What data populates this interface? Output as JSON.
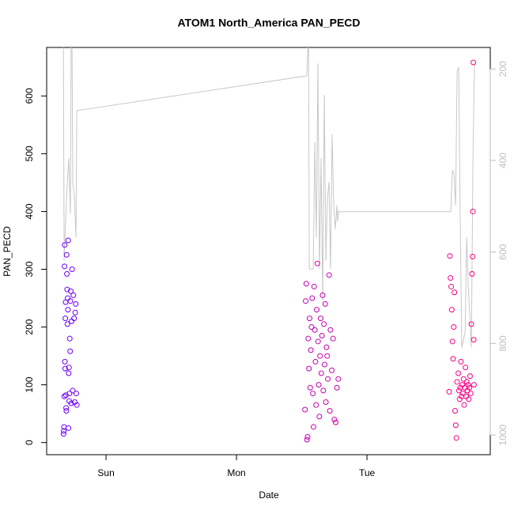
{
  "chart_data": {
    "type": "scatter",
    "title": "ATOM1 North_America PAN_PECD",
    "x_label": "Date",
    "y_label": "PAN_PECD",
    "xlim": [
      0.545,
      3.945
    ],
    "ylim": [
      -21,
      684
    ],
    "y2lim": [
      1043,
      153
    ],
    "xticks": [
      {
        "value": 1,
        "label": "Sun"
      },
      {
        "value": 2,
        "label": "Mon"
      },
      {
        "value": 3,
        "label": "Tue"
      }
    ],
    "yticks": [
      0,
      100,
      200,
      300,
      400,
      500,
      600
    ],
    "y2ticks": [
      200,
      400,
      600,
      800,
      1000
    ],
    "color_range": [
      "#6a00ff",
      "#ff0080"
    ],
    "y2_color": "#bebebe",
    "x": [
      0.675,
      0.676,
      0.678,
      0.68,
      0.682,
      0.683,
      0.685,
      0.687,
      0.688,
      0.69,
      0.692,
      0.694,
      0.696,
      0.698,
      0.7,
      0.702,
      0.704,
      0.706,
      0.708,
      0.71,
      0.712,
      0.714,
      0.716,
      0.718,
      0.72,
      0.722,
      0.725,
      0.727,
      0.73,
      0.733,
      0.736,
      0.74,
      0.745,
      0.75,
      0.755,
      0.76,
      0.764,
      0.768,
      0.772,
      0.776,
      2.525,
      2.53,
      2.535,
      2.54,
      2.545,
      2.55,
      2.555,
      2.56,
      2.565,
      2.57,
      2.575,
      2.58,
      2.585,
      2.59,
      2.595,
      2.6,
      2.605,
      2.61,
      2.615,
      2.62,
      2.625,
      2.63,
      2.635,
      2.64,
      2.645,
      2.65,
      2.655,
      2.66,
      2.665,
      2.67,
      2.675,
      2.68,
      2.685,
      2.69,
      2.695,
      2.7,
      2.71,
      2.715,
      2.72,
      2.73,
      2.74,
      2.75,
      2.76,
      2.77,
      2.78,
      3.63,
      3.635,
      3.64,
      3.645,
      3.65,
      3.655,
      3.66,
      3.665,
      3.67,
      3.675,
      3.68,
      3.685,
      3.69,
      3.7,
      3.705,
      3.71,
      3.715,
      3.72,
      3.725,
      3.73,
      3.735,
      3.74,
      3.745,
      3.75,
      3.755,
      3.76,
      3.765,
      3.77,
      3.775,
      3.78,
      3.785,
      3.79,
      3.795,
      3.8,
      3.805,
      3.81,
      3.812,
      3.815,
      3.818,
      3.82
    ],
    "values": [
      15,
      20,
      27,
      80,
      305,
      342,
      140,
      128,
      215,
      243,
      82,
      60,
      55,
      325,
      292,
      265,
      205,
      250,
      230,
      350,
      25,
      120,
      130,
      72,
      85,
      180,
      158,
      245,
      262,
      68,
      210,
      300,
      90,
      255,
      215,
      70,
      225,
      240,
      85,
      65,
      57,
      245,
      275,
      5,
      10,
      180,
      128,
      215,
      95,
      160,
      200,
      250,
      85,
      27,
      270,
      195,
      140,
      65,
      230,
      310,
      175,
      100,
      45,
      150,
      215,
      120,
      185,
      255,
      90,
      205,
      135,
      240,
      70,
      165,
      150,
      110,
      290,
      55,
      195,
      125,
      180,
      40,
      35,
      95,
      110,
      88,
      323,
      285,
      270,
      230,
      175,
      145,
      200,
      260,
      55,
      30,
      8,
      105,
      120,
      90,
      75,
      95,
      140,
      80,
      100,
      85,
      110,
      65,
      95,
      130,
      80,
      105,
      90,
      100,
      75,
      95,
      115,
      85,
      205,
      292,
      322,
      400,
      658,
      178,
      100
    ],
    "line": {
      "axis": "y2",
      "color": "#c8c8c8",
      "x": [
        0.673,
        0.679,
        0.697,
        0.715,
        0.727,
        0.733,
        0.739,
        0.745,
        0.758,
        0.77,
        0.776,
        2.539,
        2.552,
        2.558,
        2.588,
        2.6,
        2.612,
        2.624,
        2.636,
        2.648,
        2.661,
        2.673,
        2.685,
        2.697,
        2.709,
        2.721,
        2.733,
        2.745,
        2.758,
        2.77,
        2.776,
        2.782,
        3.642,
        3.655,
        3.667,
        3.679,
        3.691,
        3.703,
        3.715,
        3.727,
        3.752,
        3.764,
        3.776,
        3.8,
        3.812,
        3.824
      ],
      "values": [
        118,
        619,
        481,
        395,
        516,
        118,
        118,
        447,
        481,
        568,
        291,
        215,
        118,
        637,
        637,
        360,
        568,
        188,
        637,
        395,
        706,
        257,
        619,
        481,
        447,
        637,
        343,
        498,
        550,
        498,
        533,
        512,
        512,
        421,
        429,
        498,
        205,
        196,
        533,
        809,
        775,
        568,
        671,
        809,
        395,
        188
      ]
    }
  }
}
